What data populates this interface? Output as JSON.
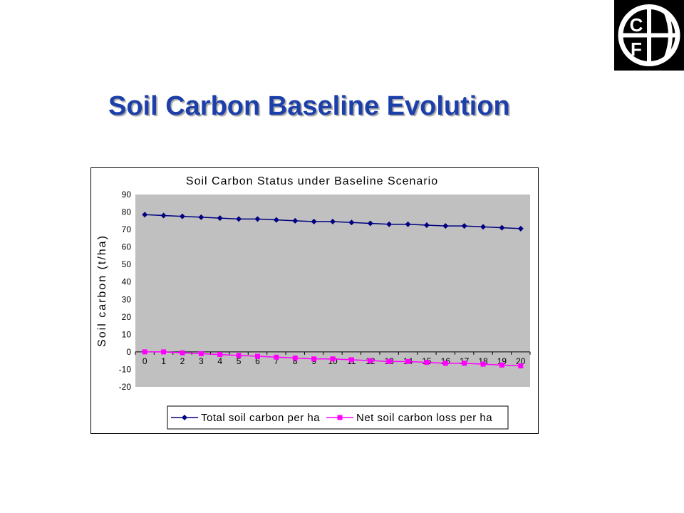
{
  "slide": {
    "title": "Soil Carbon Baseline Evolution"
  },
  "logo": {
    "letters": [
      "C",
      "F"
    ]
  },
  "colors": {
    "title": "#1c3faa",
    "plot_bg": "#c0c0c0",
    "total_series": "#000080",
    "net_series": "#ff00ff"
  },
  "chart_data": {
    "type": "line",
    "title": "Soil Carbon Status under Baseline Scenario",
    "xlabel": "",
    "ylabel": "Soil carbon (t/ha)",
    "ylim": [
      -20,
      90
    ],
    "yticks": [
      -20,
      -10,
      0,
      10,
      20,
      30,
      40,
      50,
      60,
      70,
      80,
      90
    ],
    "x": [
      0,
      1,
      2,
      3,
      4,
      5,
      6,
      7,
      8,
      9,
      10,
      11,
      12,
      13,
      14,
      15,
      16,
      17,
      18,
      19,
      20
    ],
    "grid": false,
    "legend_position": "bottom",
    "series": [
      {
        "name": "Total soil carbon per ha",
        "marker": "diamond",
        "values": [
          78.5,
          78,
          77.5,
          77,
          76.5,
          76,
          76,
          75.5,
          75,
          74.5,
          74.5,
          74,
          73.5,
          73,
          73,
          72.5,
          72,
          72,
          71.5,
          71,
          70.5
        ]
      },
      {
        "name": "Net soil carbon loss per ha",
        "marker": "square",
        "values": [
          0,
          0,
          -0.5,
          -1,
          -1.5,
          -2,
          -2.5,
          -3,
          -3.5,
          -4,
          -4,
          -4.5,
          -5,
          -5.5,
          -5.5,
          -6,
          -6.5,
          -6.5,
          -7,
          -7.5,
          -8
        ]
      }
    ]
  }
}
